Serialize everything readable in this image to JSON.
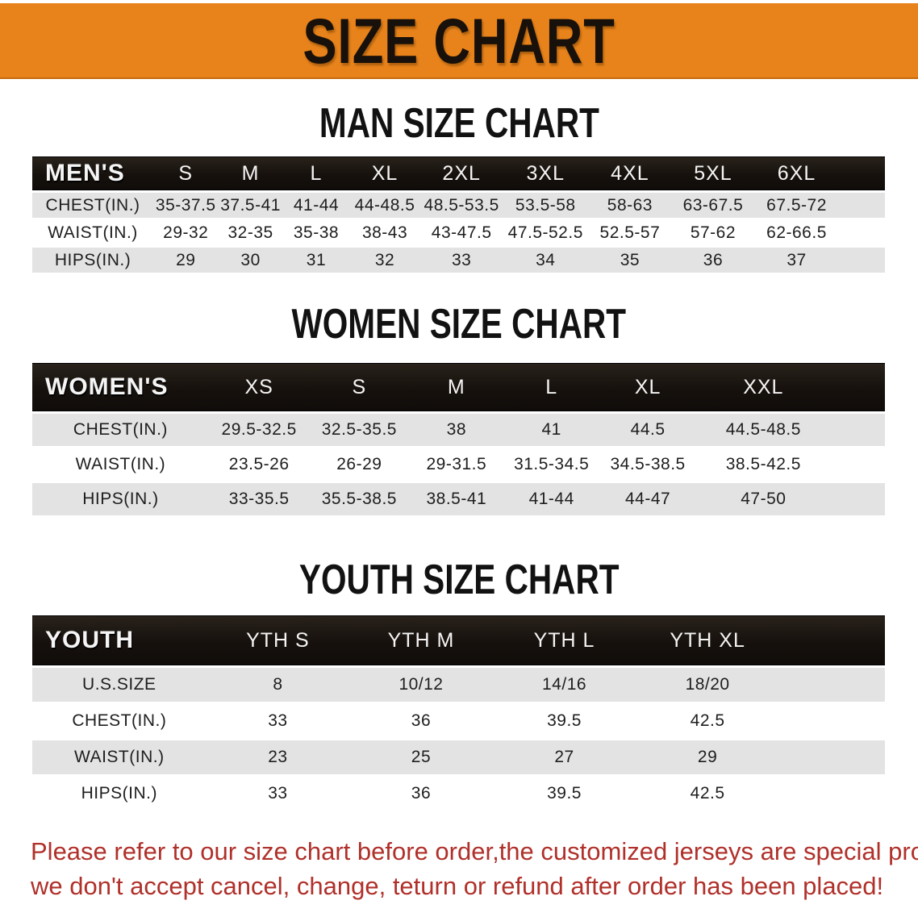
{
  "banner": {
    "title": "SIZE CHART"
  },
  "sections": {
    "men": {
      "title": "MAN SIZE CHART",
      "table": {
        "header_label": "MEN'S",
        "columns": [
          "S",
          "M",
          "L",
          "XL",
          "2XL",
          "3XL",
          "4XL",
          "5XL",
          "6XL"
        ],
        "rows": [
          {
            "label": "CHEST(IN.)",
            "values": [
              "35-37.5",
              "37.5-41",
              "41-44",
              "44-48.5",
              "48.5-53.5",
              "53.5-58",
              "58-63",
              "63-67.5",
              "67.5-72"
            ]
          },
          {
            "label": "WAIST(IN.)",
            "values": [
              "29-32",
              "32-35",
              "35-38",
              "38-43",
              "43-47.5",
              "47.5-52.5",
              "52.5-57",
              "57-62",
              "62-66.5"
            ]
          },
          {
            "label": "HIPS(IN.)",
            "values": [
              "29",
              "30",
              "31",
              "32",
              "33",
              "34",
              "35",
              "36",
              "37"
            ]
          }
        ]
      }
    },
    "women": {
      "title": "WOMEN SIZE CHART",
      "table": {
        "header_label": "WOMEN'S",
        "columns": [
          "XS",
          "S",
          "M",
          "L",
          "XL",
          "XXL"
        ],
        "rows": [
          {
            "label": "CHEST(IN.)",
            "values": [
              "29.5-32.5",
              "32.5-35.5",
              "38",
              "41",
              "44.5",
              "44.5-48.5"
            ]
          },
          {
            "label": "WAIST(IN.)",
            "values": [
              "23.5-26",
              "26-29",
              "29-31.5",
              "31.5-34.5",
              "34.5-38.5",
              "38.5-42.5"
            ]
          },
          {
            "label": "HIPS(IN.)",
            "values": [
              "33-35.5",
              "35.5-38.5",
              "38.5-41",
              "41-44",
              "44-47",
              "47-50"
            ]
          }
        ]
      }
    },
    "youth": {
      "title": "YOUTH SIZE CHART",
      "table": {
        "header_label": "YOUTH",
        "columns": [
          "YTH S",
          "YTH M",
          "YTH L",
          "YTH XL"
        ],
        "rows": [
          {
            "label": "U.S.SIZE",
            "values": [
              "8",
              "10/12",
              "14/16",
              "18/20"
            ]
          },
          {
            "label": "CHEST(IN.)",
            "values": [
              "33",
              "36",
              "39.5",
              "42.5"
            ]
          },
          {
            "label": "WAIST(IN.)",
            "values": [
              "23",
              "25",
              "27",
              "29"
            ]
          },
          {
            "label": "HIPS(IN.)",
            "values": [
              "33",
              "36",
              "39.5",
              "42.5"
            ]
          }
        ]
      }
    }
  },
  "footer": {
    "line1": "Please refer to our size chart before order,the customized jerseys are special products,",
    "line2": "we don't accept cancel, change, teturn or refund after order has been placed!"
  },
  "colors": {
    "banner_orange": "#E8831B",
    "header_black": "#16110D",
    "row_gray": "#E3E3E3",
    "footer_red": "#B0302A",
    "header_text": "#F5F5F5"
  }
}
